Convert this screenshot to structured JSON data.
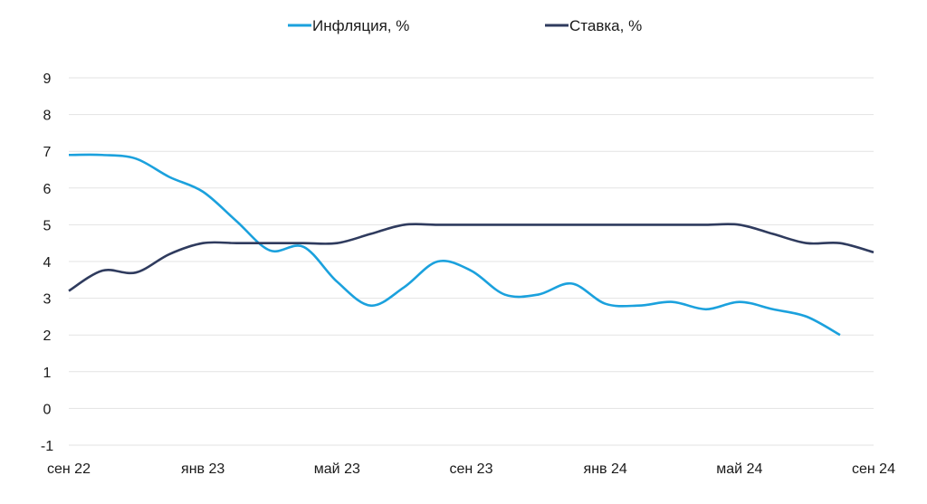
{
  "chart_data": {
    "type": "line",
    "title": "",
    "xlabel": "",
    "ylabel": "",
    "ylim": [
      -1,
      9
    ],
    "yticks": [
      "9",
      "8",
      "7",
      "6",
      "5",
      "4",
      "3",
      "2",
      "1",
      "0",
      "-1"
    ],
    "xtick_labels": [
      "сен 22",
      "янв 23",
      "май 23",
      "сен 23",
      "янв 24",
      "май 24",
      "сен 24"
    ],
    "grid": true,
    "legend_position": "top",
    "x": [
      "сен 22",
      "окт 22",
      "ноя 22",
      "дек 22",
      "янв 23",
      "фев 23",
      "мар 23",
      "апр 23",
      "май 23",
      "июн 23",
      "июл 23",
      "авг 23",
      "сен 23",
      "окт 23",
      "ноя 23",
      "дек 23",
      "янв 24",
      "фев 24",
      "мар 24",
      "апр 24",
      "май 24",
      "июн 24",
      "июл 24",
      "авг 24",
      "сен 24"
    ],
    "series": [
      {
        "name": "Инфляция, %",
        "color": "#1ba1dd",
        "values": [
          6.9,
          6.9,
          6.8,
          6.3,
          5.9,
          5.1,
          4.3,
          4.4,
          3.45,
          2.8,
          3.3,
          4.0,
          3.75,
          3.1,
          3.1,
          3.4,
          2.85,
          2.8,
          2.9,
          2.7,
          2.9,
          2.7,
          2.5,
          2.0,
          null
        ]
      },
      {
        "name": "Ставка, %",
        "color": "#2f3b5e",
        "values": [
          3.2,
          3.75,
          3.7,
          4.2,
          4.5,
          4.5,
          4.5,
          4.5,
          4.5,
          4.75,
          5.0,
          5.0,
          5.0,
          5.0,
          5.0,
          5.0,
          5.0,
          5.0,
          5.0,
          5.0,
          5.0,
          4.75,
          4.5,
          4.5,
          4.25
        ]
      }
    ]
  }
}
